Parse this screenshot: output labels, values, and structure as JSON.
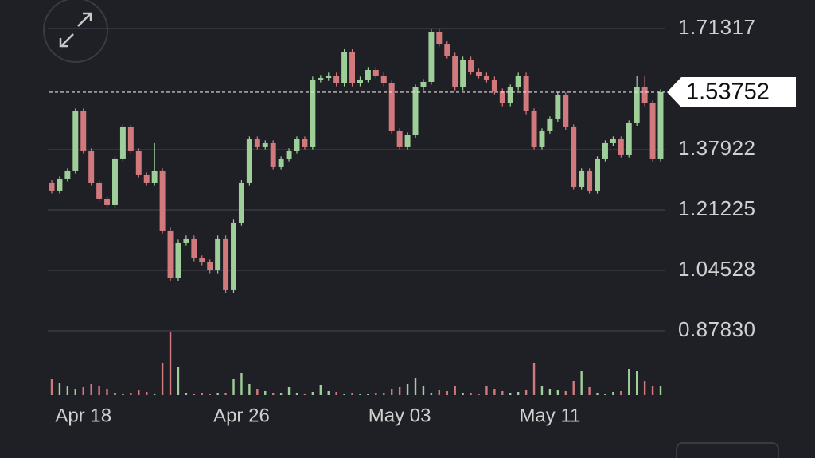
{
  "chart_data": {
    "type": "candlestick",
    "categories": [
      null,
      null,
      null,
      null,
      "Apr 18",
      null,
      null,
      null,
      null,
      null,
      null,
      null,
      null,
      null,
      null,
      null,
      null,
      null,
      null,
      null,
      null,
      null,
      null,
      null,
      "Apr 26",
      null,
      null,
      null,
      null,
      null,
      null,
      null,
      null,
      null,
      null,
      null,
      null,
      null,
      null,
      null,
      null,
      null,
      null,
      null,
      "May 03",
      null,
      null,
      null,
      null,
      null,
      null,
      null,
      null,
      null,
      null,
      null,
      null,
      null,
      null,
      null,
      null,
      null,
      null,
      "May 11",
      null,
      null,
      null,
      null,
      null,
      null,
      null,
      null,
      null,
      null,
      null,
      null,
      null,
      null
    ],
    "open": [
      1.287,
      1.2651,
      1.298,
      1.32,
      1.4847,
      1.3749,
      1.287,
      1.2431,
      1.2255,
      1.3529,
      1.4408,
      1.3749,
      1.309,
      1.287,
      1.32,
      1.1552,
      1.0234,
      1.1223,
      1.1333,
      1.0783,
      1.0673,
      1.0454,
      1.1333,
      0.9905,
      1.1772,
      1.287,
      1.4078,
      1.3859,
      1.3969,
      1.331,
      1.3529,
      1.3749,
      1.4078,
      1.3859,
      1.5726,
      1.577,
      1.5836,
      1.5616,
      1.6495,
      1.5616,
      1.5726,
      1.5989,
      1.5836,
      1.5616,
      1.4298,
      1.3859,
      1.4188,
      1.5506,
      1.566,
      1.7044,
      1.6714,
      1.6385,
      1.5506,
      1.6275,
      1.5946,
      1.5836,
      1.5726,
      1.5396,
      1.5067,
      1.5506,
      1.5836,
      1.4847,
      1.3859,
      1.4298,
      1.4628,
      1.5287,
      1.4408,
      1.276,
      1.32,
      1.2651,
      1.3529,
      1.3969,
      1.4078,
      1.3639,
      1.4518,
      1.5506,
      1.5067,
      1.3529
    ],
    "high": [
      1.295,
      1.306,
      1.328,
      1.4927,
      1.4927,
      1.3829,
      1.295,
      1.2511,
      1.3609,
      1.4488,
      1.4488,
      1.3829,
      1.317,
      1.3969,
      1.328,
      1.1632,
      1.1303,
      1.1413,
      1.1413,
      1.0863,
      1.0753,
      1.1413,
      1.1413,
      1.1852,
      1.295,
      1.4158,
      1.4158,
      1.4049,
      1.4049,
      1.3609,
      1.3829,
      1.4158,
      1.4158,
      1.5806,
      1.585,
      1.5916,
      1.5916,
      1.6575,
      1.6575,
      1.5806,
      1.6069,
      1.6069,
      1.5916,
      1.5696,
      1.4378,
      1.4268,
      1.5586,
      1.574,
      1.7124,
      1.7124,
      1.6794,
      1.6465,
      1.6355,
      1.6355,
      1.6026,
      1.5916,
      1.5806,
      1.5476,
      1.5586,
      1.5916,
      1.5916,
      1.4927,
      1.4378,
      1.4708,
      1.5367,
      1.5367,
      1.4488,
      1.328,
      1.328,
      1.3609,
      1.4049,
      1.4158,
      1.4158,
      1.4598,
      1.5836,
      1.5836,
      1.5147,
      1.5455
    ],
    "low": [
      1.2571,
      1.2571,
      1.29,
      1.312,
      1.3669,
      1.279,
      1.2351,
      1.2175,
      1.2175,
      1.3449,
      1.3669,
      1.301,
      1.279,
      1.279,
      1.1472,
      1.0154,
      1.0154,
      1.1143,
      1.0703,
      1.0593,
      1.0374,
      1.0374,
      0.9825,
      0.9825,
      1.1692,
      1.279,
      1.3779,
      1.3779,
      1.323,
      1.323,
      1.3449,
      1.3669,
      1.3779,
      1.3779,
      1.5646,
      1.569,
      1.5536,
      1.5536,
      1.5536,
      1.5536,
      1.5646,
      1.5756,
      1.5536,
      1.4218,
      1.3779,
      1.3779,
      1.4108,
      1.5426,
      1.558,
      1.6634,
      1.6305,
      1.5426,
      1.5426,
      1.5866,
      1.5756,
      1.5646,
      1.5316,
      1.4987,
      1.4987,
      1.5426,
      1.4767,
      1.3779,
      1.3779,
      1.4218,
      1.4548,
      1.4328,
      1.268,
      1.268,
      1.2571,
      1.2571,
      1.3449,
      1.3889,
      1.3559,
      1.3559,
      1.4438,
      1.4987,
      1.3449,
      1.3449
    ],
    "close": [
      1.2651,
      1.298,
      1.32,
      1.4847,
      1.3749,
      1.287,
      1.2431,
      1.2255,
      1.3529,
      1.4408,
      1.3749,
      1.309,
      1.287,
      1.32,
      1.1552,
      1.0234,
      1.1223,
      1.1333,
      1.0783,
      1.0673,
      1.0454,
      1.1333,
      0.9905,
      1.1772,
      1.287,
      1.4078,
      1.3859,
      1.3969,
      1.331,
      1.3529,
      1.3749,
      1.4078,
      1.3859,
      1.5726,
      1.577,
      1.5836,
      1.5616,
      1.6495,
      1.5616,
      1.5726,
      1.5989,
      1.5836,
      1.5616,
      1.4298,
      1.3859,
      1.4188,
      1.5506,
      1.566,
      1.7044,
      1.6714,
      1.6385,
      1.5506,
      1.6275,
      1.5946,
      1.5836,
      1.5726,
      1.5396,
      1.5067,
      1.5506,
      1.5836,
      1.4847,
      1.3859,
      1.4298,
      1.4628,
      1.5287,
      1.4408,
      1.276,
      1.32,
      1.2651,
      1.3529,
      1.3969,
      1.4078,
      1.3639,
      1.4518,
      1.5506,
      1.5067,
      1.3529,
      1.53752
    ],
    "volume": [
      20,
      15,
      12,
      8,
      10,
      14,
      12,
      8,
      3,
      2,
      3,
      6,
      4,
      2,
      40,
      80,
      35,
      3,
      2,
      3,
      2,
      3,
      3,
      20,
      28,
      14,
      8,
      5,
      3,
      3,
      10,
      3,
      2,
      4,
      13,
      5,
      4,
      2,
      3,
      2,
      2,
      3,
      3,
      8,
      10,
      14,
      22,
      12,
      3,
      6,
      5,
      12,
      3,
      3,
      2,
      12,
      8,
      5,
      3,
      4,
      6,
      40,
      12,
      8,
      7,
      5,
      18,
      30,
      10,
      3,
      2,
      4,
      5,
      33,
      30,
      18,
      12,
      12
    ],
    "up_color": "#9fcf99",
    "down_color": "#d2797d",
    "ylim": [
      0.8783,
      1.71317
    ],
    "yticks": [
      {
        "value": 0.8783,
        "label": "0.87830"
      },
      1.04528,
      1.21225,
      1.37922,
      1.71317
    ],
    "grid": true,
    "last_price": 1.53752
  }
}
